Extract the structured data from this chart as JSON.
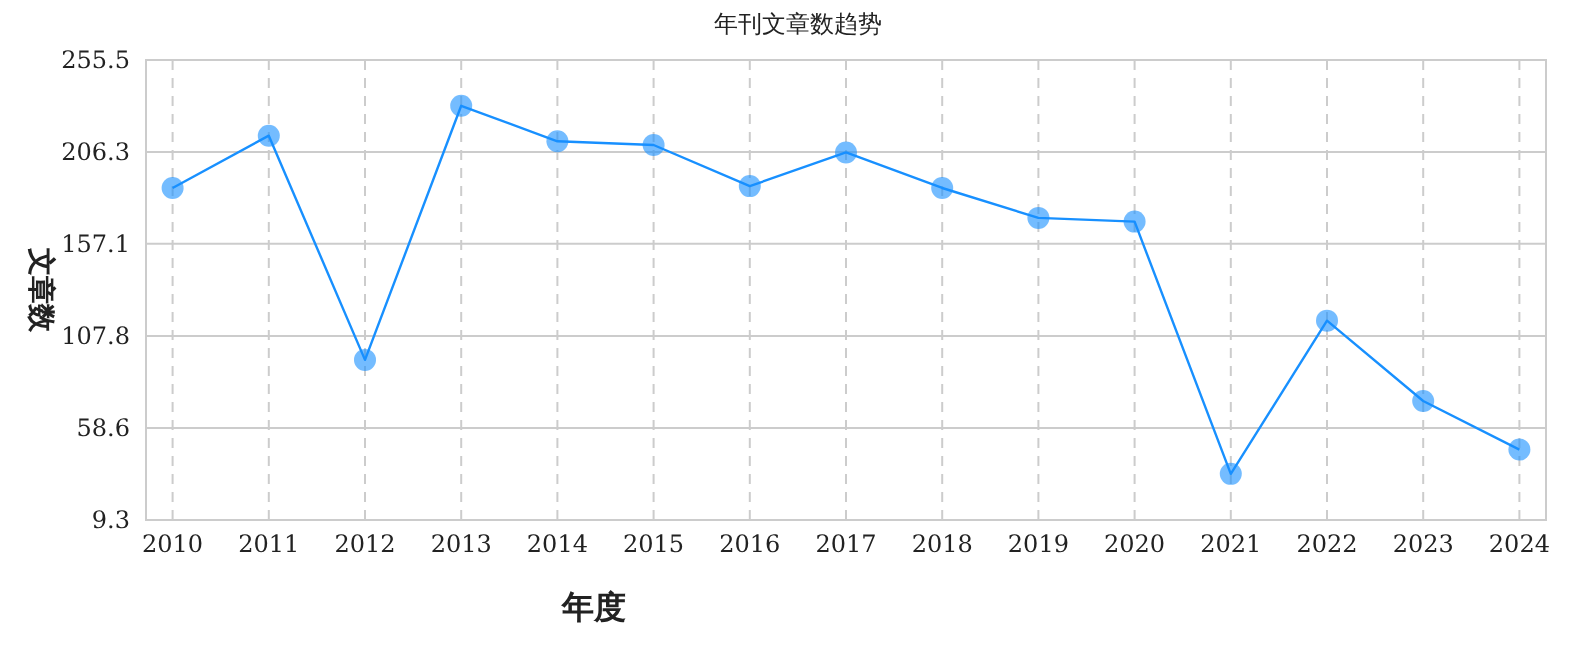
{
  "chart_data": {
    "type": "line",
    "title": "年刊文章数趋势",
    "xlabel": "年度",
    "ylabel": "文章数",
    "categories": [
      "2010",
      "2011",
      "2012",
      "2013",
      "2014",
      "2015",
      "2016",
      "2017",
      "2018",
      "2019",
      "2020",
      "2021",
      "2022",
      "2023",
      "2024"
    ],
    "series": [
      {
        "color": "#1890ff",
        "values": [
          187,
          215,
          95,
          231,
          212,
          210,
          188,
          206,
          187,
          171,
          169,
          34,
          116,
          73,
          47
        ]
      }
    ],
    "marker": "circle",
    "ylim": [
      9.3,
      255.5
    ],
    "yticks": [
      9.3,
      58.6,
      107.8,
      157.1,
      206.3,
      255.5
    ],
    "grid": true
  }
}
